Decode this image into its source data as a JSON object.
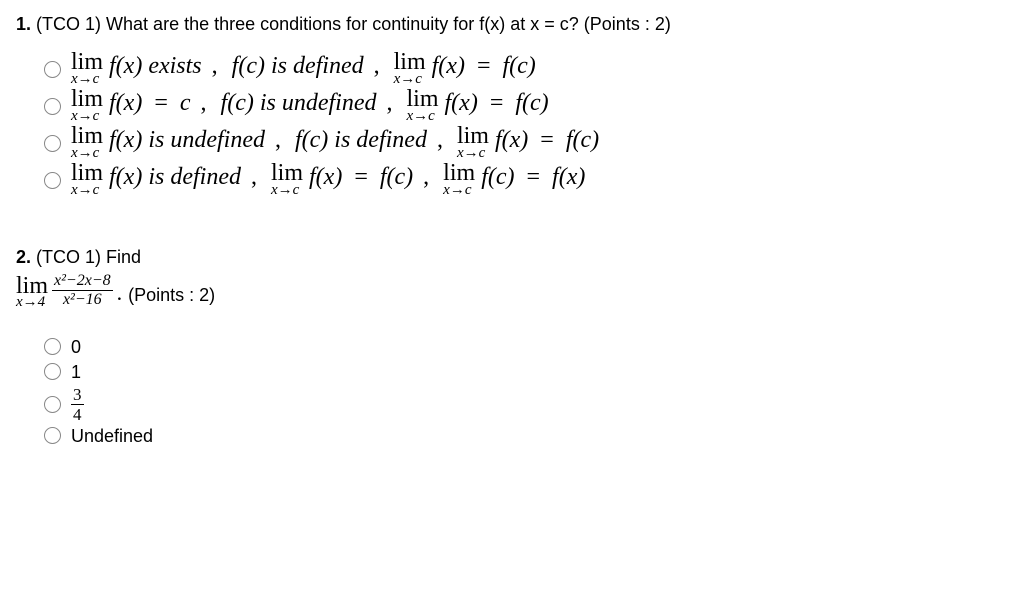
{
  "q1": {
    "number": "1.",
    "tco": "(TCO 1)",
    "stem": "What are the three conditions for continuity for f(x) at x = c?",
    "points": "(Points : 2)",
    "options": [
      {
        "parts": [
          {
            "type": "lim",
            "top": "lim",
            "bot": "x→c",
            "after": "f(x)"
          },
          {
            "type": "text",
            "val": "exists"
          },
          {
            "type": "comma"
          },
          {
            "type": "text",
            "val": "f(c) is defined"
          },
          {
            "type": "comma"
          },
          {
            "type": "lim",
            "top": "lim",
            "bot": "x→c",
            "after": "f(x)"
          },
          {
            "type": "eq"
          },
          {
            "type": "text",
            "val": "f(c)"
          }
        ]
      },
      {
        "parts": [
          {
            "type": "lim",
            "top": "lim",
            "bot": "x→c",
            "after": "f(x)"
          },
          {
            "type": "eq"
          },
          {
            "type": "text",
            "val": "c"
          },
          {
            "type": "comma"
          },
          {
            "type": "text",
            "val": "f(c) is undefined"
          },
          {
            "type": "comma"
          },
          {
            "type": "lim",
            "top": "lim",
            "bot": "x→c",
            "after": "f(x)"
          },
          {
            "type": "eq"
          },
          {
            "type": "text",
            "val": "f(c)"
          }
        ]
      },
      {
        "parts": [
          {
            "type": "lim",
            "top": "lim",
            "bot": "x→c",
            "after": "f(x)"
          },
          {
            "type": "text",
            "val": "is undefined"
          },
          {
            "type": "comma"
          },
          {
            "type": "text",
            "val": "f(c) is defined"
          },
          {
            "type": "comma"
          },
          {
            "type": "lim",
            "top": "lim",
            "bot": "x→c",
            "after": "f(x)"
          },
          {
            "type": "eq"
          },
          {
            "type": "text",
            "val": "f(c)"
          }
        ]
      },
      {
        "parts": [
          {
            "type": "lim",
            "top": "lim",
            "bot": "x→c",
            "after": "f(x)"
          },
          {
            "type": "text",
            "val": "is defined"
          },
          {
            "type": "comma"
          },
          {
            "type": "lim",
            "top": "lim",
            "bot": "x→c",
            "after": "f(x)"
          },
          {
            "type": "eq"
          },
          {
            "type": "text",
            "val": "f(c)"
          },
          {
            "type": "comma"
          },
          {
            "type": "lim",
            "top": "lim",
            "bot": "x→c",
            "after": "f(c)"
          },
          {
            "type": "eq"
          },
          {
            "type": "text",
            "val": "f(x)"
          }
        ]
      }
    ]
  },
  "q2": {
    "number": "2.",
    "tco": "(TCO 1)",
    "stem_word": "Find",
    "lim_top": "lim",
    "lim_bot": "x→4",
    "frac_num": "x²−2x−8",
    "frac_den": "x²−16",
    "period": ".",
    "points": "(Points : 2)",
    "options": [
      {
        "kind": "plain",
        "val": "0"
      },
      {
        "kind": "plain",
        "val": "1"
      },
      {
        "kind": "frac",
        "num": "3",
        "den": "4"
      },
      {
        "kind": "plain",
        "val": "Undefined"
      }
    ]
  }
}
